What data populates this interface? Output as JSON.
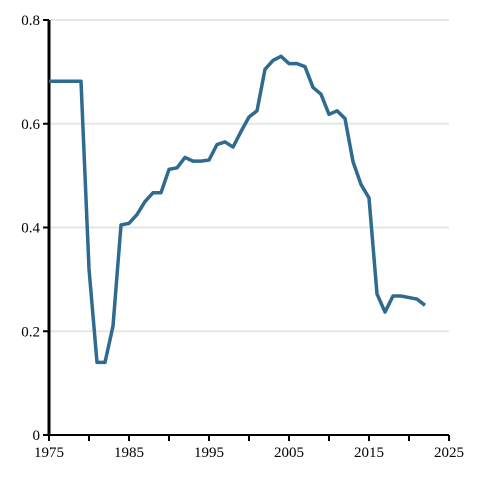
{
  "chart_data": {
    "type": "line",
    "x": [
      1975,
      1976,
      1977,
      1978,
      1979,
      1980,
      1981,
      1982,
      1983,
      1984,
      1985,
      1986,
      1987,
      1988,
      1989,
      1990,
      1991,
      1992,
      1993,
      1994,
      1995,
      1996,
      1997,
      1998,
      1999,
      2000,
      2001,
      2002,
      2003,
      2004,
      2005,
      2006,
      2007,
      2008,
      2009,
      2010,
      2011,
      2012,
      2013,
      2014,
      2015,
      2016,
      2017,
      2018,
      2019,
      2020,
      2021,
      2022
    ],
    "values": [
      0.682,
      0.682,
      0.682,
      0.682,
      0.682,
      0.32,
      0.14,
      0.14,
      0.21,
      0.405,
      0.408,
      0.425,
      0.45,
      0.467,
      0.467,
      0.512,
      0.515,
      0.535,
      0.528,
      0.528,
      0.53,
      0.56,
      0.565,
      0.555,
      0.585,
      0.613,
      0.625,
      0.705,
      0.722,
      0.73,
      0.716,
      0.716,
      0.71,
      0.67,
      0.657,
      0.618,
      0.625,
      0.61,
      0.527,
      0.483,
      0.457,
      0.272,
      0.237,
      0.268,
      0.268,
      0.265,
      0.262,
      0.25
    ],
    "color": "#2e6b8f",
    "xlim": [
      1975,
      2025
    ],
    "xticks": [
      1975,
      1985,
      1995,
      2005,
      2015,
      2025
    ],
    "xminor_ticks": [
      1980,
      1990,
      2000,
      2010,
      2020
    ],
    "ylim": [
      0,
      0.8
    ],
    "yticks": [
      0,
      0.2,
      0.4,
      0.6,
      0.8
    ],
    "grid": true
  }
}
